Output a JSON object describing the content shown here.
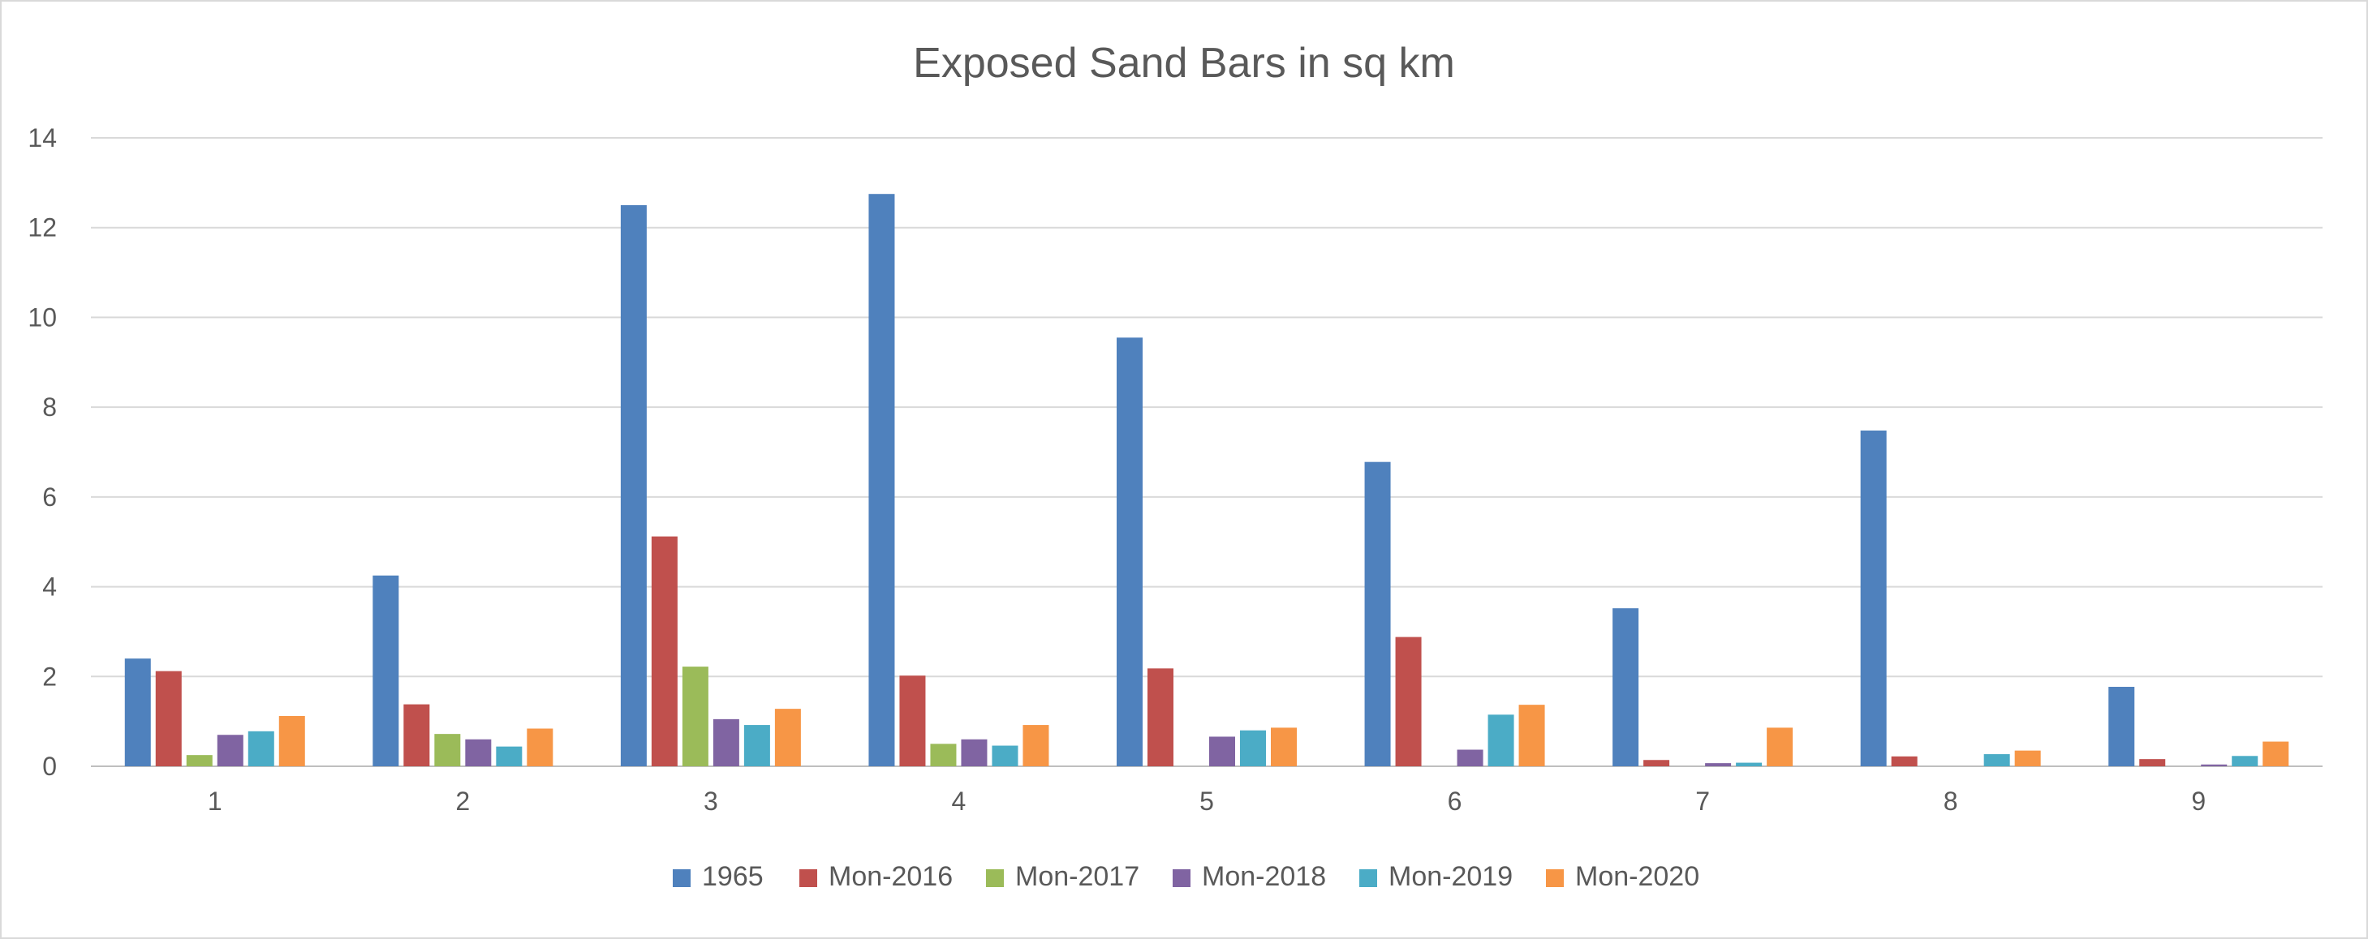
{
  "chart_data": {
    "type": "bar",
    "title": "Exposed Sand Bars in sq km",
    "xlabel": "",
    "ylabel": "",
    "ylim": [
      0,
      14
    ],
    "yticks": [
      0,
      2,
      4,
      6,
      8,
      10,
      12,
      14
    ],
    "grid": true,
    "legend_position": "bottom",
    "categories": [
      "1",
      "2",
      "3",
      "4",
      "5",
      "6",
      "7",
      "8",
      "9"
    ],
    "series": [
      {
        "name": "1965",
        "color": "#4f81bd",
        "values": [
          2.4,
          4.25,
          12.5,
          12.75,
          9.55,
          6.78,
          3.52,
          7.48,
          1.77
        ]
      },
      {
        "name": "Mon-2016",
        "color": "#c0504d",
        "values": [
          2.12,
          1.38,
          5.12,
          2.02,
          2.18,
          2.88,
          0.14,
          0.22,
          0.16
        ]
      },
      {
        "name": "Mon-2017",
        "color": "#9bbb59",
        "values": [
          0.25,
          0.72,
          2.22,
          0.5,
          0.0,
          0.0,
          0.0,
          0.0,
          0.0
        ]
      },
      {
        "name": "Mon-2018",
        "color": "#8064a2",
        "values": [
          0.7,
          0.6,
          1.05,
          0.6,
          0.66,
          0.37,
          0.07,
          0.0,
          0.04
        ]
      },
      {
        "name": "Mon-2019",
        "color": "#4bacc6",
        "values": [
          0.78,
          0.44,
          0.92,
          0.46,
          0.8,
          1.15,
          0.08,
          0.27,
          0.23
        ]
      },
      {
        "name": "Mon-2020",
        "color": "#f79646",
        "values": [
          1.12,
          0.84,
          1.28,
          0.92,
          0.86,
          1.37,
          0.86,
          0.35,
          0.55
        ]
      }
    ]
  }
}
